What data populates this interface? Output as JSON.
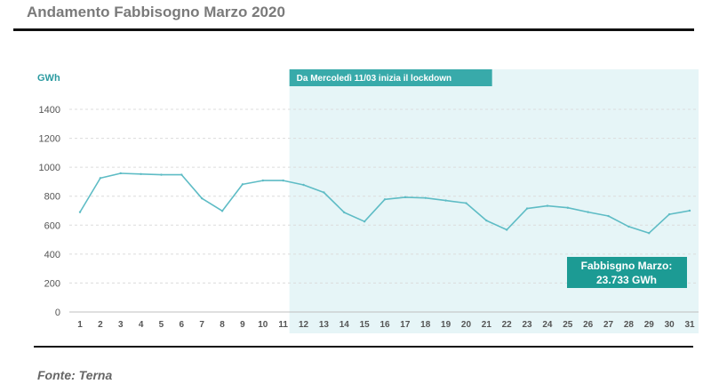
{
  "title": "Andamento Fabbisogno Marzo 2020",
  "source": "Fonte: Terna",
  "colors": {
    "line": "#5ebcc5",
    "shade": "#e6f5f7",
    "banner": "#38aaaa",
    "total_box": "#1c9b94",
    "axis_text": "#555555",
    "unit_text": "#2a9aa0"
  },
  "chart_data": {
    "type": "line",
    "title": "Andamento Fabbisogno Marzo 2020",
    "ylabel": "GWh",
    "xlabel": "",
    "x": [
      "1",
      "2",
      "3",
      "4",
      "5",
      "6",
      "7",
      "8",
      "9",
      "10",
      "11",
      "12",
      "13",
      "14",
      "15",
      "16",
      "17",
      "18",
      "19",
      "20",
      "21",
      "22",
      "23",
      "24",
      "25",
      "26",
      "27",
      "28",
      "29",
      "30",
      "31"
    ],
    "ylim": [
      0,
      1400
    ],
    "yticks": [
      "0",
      "200",
      "400",
      "600",
      "800",
      "1000",
      "1200",
      "1400"
    ],
    "grid": true,
    "series": [
      {
        "values": [
          690,
          925,
          958,
          953,
          948,
          948,
          785,
          698,
          882,
          908,
          908,
          878,
          826,
          688,
          625,
          778,
          793,
          788,
          770,
          752,
          632,
          568,
          715,
          733,
          720,
          690,
          663,
          590,
          545,
          675,
          700
        ]
      }
    ],
    "shaded_from_day": 11,
    "annotations": {
      "lockdown": "Da Mercoledì 11/03  inizia il lockdown",
      "total_label": "Fabbisgno Marzo:",
      "total_value": "23.733 GWh"
    }
  }
}
